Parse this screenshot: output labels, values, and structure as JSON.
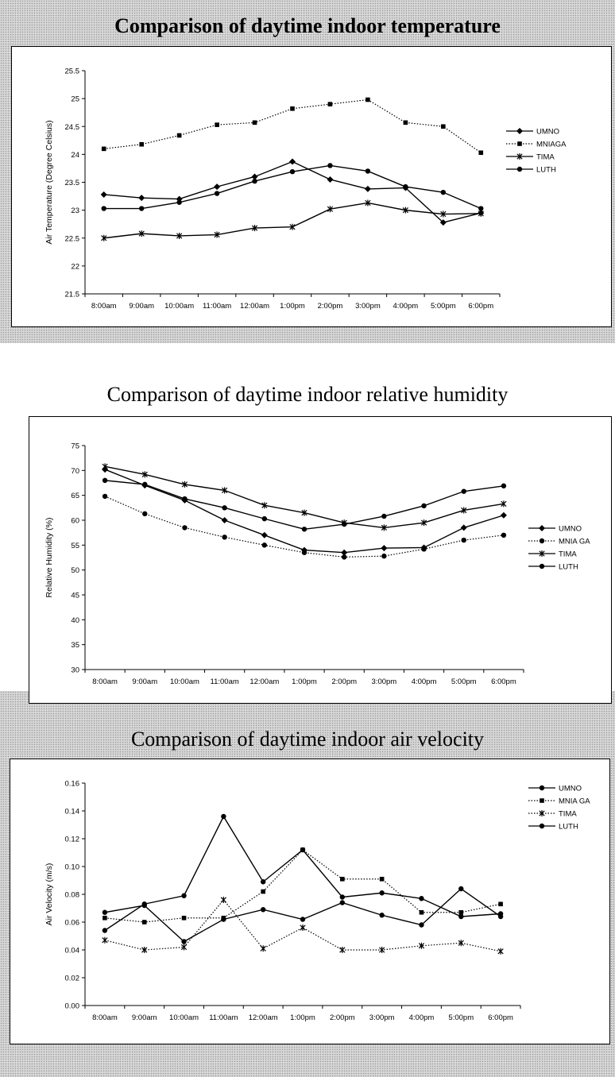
{
  "chart_data": [
    {
      "type": "line",
      "title": "Comparison of daytime indoor temperature",
      "ylabel": "Air Temperature (Degree Celsius)",
      "xlabel": "",
      "categories": [
        "8:00am",
        "9:00am",
        "10:00am",
        "11:00am",
        "12:00am",
        "1:00pm",
        "2:00pm",
        "3:00pm",
        "4:00pm",
        "5:00pm",
        "6:00pm"
      ],
      "ylim": [
        21.5,
        25.5
      ],
      "yticks": [
        "21.5",
        "22",
        "22.5",
        "23",
        "23.5",
        "24",
        "24.5",
        "25",
        "25.5"
      ],
      "legend_position": "right",
      "grid": false,
      "series": [
        {
          "name": "UMNO",
          "marker": "diamond",
          "dash": "solid",
          "values": [
            23.28,
            23.22,
            23.2,
            23.42,
            23.6,
            23.87,
            23.55,
            23.38,
            23.4,
            22.78,
            22.95
          ]
        },
        {
          "name": "MNIAGA",
          "marker": "square",
          "dash": "dotted",
          "values": [
            24.1,
            24.18,
            24.34,
            24.53,
            24.57,
            24.82,
            24.9,
            24.98,
            24.57,
            24.5,
            24.03
          ]
        },
        {
          "name": "TIMA",
          "marker": "star",
          "dash": "solid",
          "values": [
            22.5,
            22.58,
            22.54,
            22.56,
            22.68,
            22.7,
            23.02,
            23.13,
            23.0,
            22.93,
            22.94
          ]
        },
        {
          "name": "LUTH",
          "marker": "circle",
          "dash": "solid",
          "values": [
            23.03,
            23.03,
            23.14,
            23.3,
            23.52,
            23.69,
            23.8,
            23.7,
            23.42,
            23.32,
            23.03
          ]
        }
      ]
    },
    {
      "type": "line",
      "title": "Comparison of daytime indoor relative humidity",
      "ylabel": "Relative Humidity (%)",
      "xlabel": "",
      "categories": [
        "8:00am",
        "9:00am",
        "10:00am",
        "11:00am",
        "12:00am",
        "1:00pm",
        "2:00pm",
        "3:00pm",
        "4:00pm",
        "5:00pm",
        "6:00pm"
      ],
      "ylim": [
        30,
        75
      ],
      "yticks": [
        "30",
        "35",
        "40",
        "45",
        "50",
        "55",
        "60",
        "65",
        "70",
        "75"
      ],
      "legend_position": "right",
      "grid": false,
      "series": [
        {
          "name": "UMNO",
          "marker": "diamond",
          "dash": "solid",
          "values": [
            70.2,
            67.0,
            64.0,
            60.0,
            57.0,
            54.0,
            53.5,
            54.4,
            54.5,
            58.5,
            61.0
          ]
        },
        {
          "name": "MNIA GA",
          "marker": "circle",
          "dash": "dotted",
          "values": [
            64.8,
            61.3,
            58.5,
            56.6,
            55.0,
            53.5,
            52.6,
            52.8,
            54.2,
            56.0,
            57.0
          ]
        },
        {
          "name": "TIMA",
          "marker": "star",
          "dash": "solid",
          "values": [
            70.8,
            69.2,
            67.2,
            66.0,
            63.0,
            61.5,
            59.5,
            58.5,
            59.5,
            62.0,
            63.3
          ]
        },
        {
          "name": "LUTH",
          "marker": "circle",
          "dash": "solid",
          "values": [
            68.0,
            67.2,
            64.3,
            62.5,
            60.3,
            58.2,
            59.2,
            60.8,
            62.9,
            65.8,
            66.9
          ]
        }
      ]
    },
    {
      "type": "line",
      "title": "Comparison of daytime indoor air velocity",
      "ylabel": "Air Velocity (m/s)",
      "xlabel": "",
      "categories": [
        "8:00am",
        "9:00am",
        "10:00am",
        "11:00am",
        "12:00am",
        "1:00pm",
        "2:00pm",
        "3:00pm",
        "4:00pm",
        "5:00pm",
        "6:00pm"
      ],
      "ylim": [
        0,
        0.16
      ],
      "yticks": [
        "0.00",
        "0.02",
        "0.04",
        "0.06",
        "0.08",
        "0.10",
        "0.12",
        "0.14",
        "0.16"
      ],
      "legend_position": "right",
      "grid": false,
      "series": [
        {
          "name": "UMNO",
          "marker": "circle",
          "dash": "solid",
          "values": [
            0.054,
            0.073,
            0.079,
            0.136,
            0.089,
            0.112,
            0.078,
            0.081,
            0.077,
            0.064,
            0.066
          ]
        },
        {
          "name": "MNIA GA",
          "marker": "square",
          "dash": "dotted",
          "values": [
            0.063,
            0.06,
            0.063,
            0.063,
            0.082,
            0.112,
            0.091,
            0.091,
            0.067,
            0.067,
            0.073
          ]
        },
        {
          "name": "TIMA",
          "marker": "star",
          "dash": "dotted",
          "values": [
            0.047,
            0.04,
            0.042,
            0.076,
            0.041,
            0.056,
            0.04,
            0.04,
            0.043,
            0.045,
            0.039
          ]
        },
        {
          "name": "LUTH",
          "marker": "circle",
          "dash": "solid",
          "values": [
            0.067,
            0.072,
            0.046,
            0.062,
            0.069,
            0.062,
            0.074,
            0.065,
            0.058,
            0.084,
            0.064
          ]
        }
      ]
    }
  ]
}
